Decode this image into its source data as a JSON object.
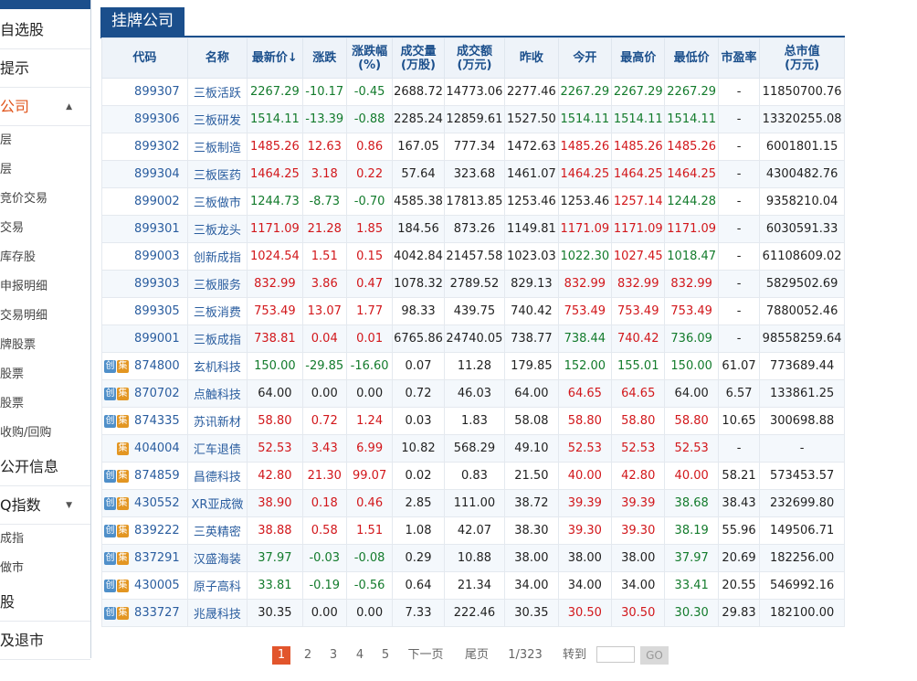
{
  "sidebar": {
    "items": [
      {
        "label": "自选股",
        "type": "main"
      },
      {
        "label": "提示",
        "type": "main"
      },
      {
        "label": "公司",
        "type": "main",
        "active": true,
        "expanded": true
      },
      {
        "label": "层",
        "type": "sub"
      },
      {
        "label": "层",
        "type": "sub"
      },
      {
        "label": "竞价交易",
        "type": "sub"
      },
      {
        "label": "交易",
        "type": "sub"
      },
      {
        "label": "库存股",
        "type": "sub"
      },
      {
        "label": "申报明细",
        "type": "sub"
      },
      {
        "label": "交易明细",
        "type": "sub"
      },
      {
        "label": "牌股票",
        "type": "sub"
      },
      {
        "label": "股票",
        "type": "sub"
      },
      {
        "label": "股票",
        "type": "sub"
      },
      {
        "label": "收购/回购",
        "type": "sub"
      },
      {
        "label": "公开信息",
        "type": "main"
      },
      {
        "label": "Q指数",
        "type": "main",
        "expanded": false
      },
      {
        "label": "成指",
        "type": "sub"
      },
      {
        "label": "做市",
        "type": "sub"
      },
      {
        "label": "股",
        "type": "main"
      },
      {
        "label": "及退市",
        "type": "main"
      }
    ]
  },
  "header": {
    "title": "挂牌公司"
  },
  "table": {
    "columns": [
      "代码",
      "名称",
      "最新价↓",
      "涨跌",
      "涨跌幅\n(%)",
      "成交量\n(万股)",
      "成交额\n(万元)",
      "昨收",
      "今开",
      "最高价",
      "最低价",
      "市盈率",
      "总市值\n(万元)"
    ],
    "rows": [
      {
        "badges": [],
        "code": "899307",
        "name": "三板活跃",
        "price": "2267.29",
        "change": "-10.17",
        "pct": "-0.45",
        "vol": "2688.72",
        "amt": "14773.06",
        "prev": "2277.46",
        "open": "2267.29",
        "high": "2267.29",
        "low": "2267.29",
        "pe": "-",
        "mcap": "11850700.76",
        "colors": {
          "price": "down",
          "change": "down",
          "pct": "down",
          "open": "down",
          "high": "down",
          "low": "down"
        }
      },
      {
        "badges": [],
        "code": "899306",
        "name": "三板研发",
        "price": "1514.11",
        "change": "-13.39",
        "pct": "-0.88",
        "vol": "2285.24",
        "amt": "12859.61",
        "prev": "1527.50",
        "open": "1514.11",
        "high": "1514.11",
        "low": "1514.11",
        "pe": "-",
        "mcap": "13320255.08",
        "colors": {
          "price": "down",
          "change": "down",
          "pct": "down",
          "open": "down",
          "high": "down",
          "low": "down"
        }
      },
      {
        "badges": [],
        "code": "899302",
        "name": "三板制造",
        "price": "1485.26",
        "change": "12.63",
        "pct": "0.86",
        "vol": "167.05",
        "amt": "777.34",
        "prev": "1472.63",
        "open": "1485.26",
        "high": "1485.26",
        "low": "1485.26",
        "pe": "-",
        "mcap": "6001801.15",
        "colors": {
          "price": "up",
          "change": "up",
          "pct": "up",
          "open": "up",
          "high": "up",
          "low": "up"
        }
      },
      {
        "badges": [],
        "code": "899304",
        "name": "三板医药",
        "price": "1464.25",
        "change": "3.18",
        "pct": "0.22",
        "vol": "57.64",
        "amt": "323.68",
        "prev": "1461.07",
        "open": "1464.25",
        "high": "1464.25",
        "low": "1464.25",
        "pe": "-",
        "mcap": "4300482.76",
        "colors": {
          "price": "up",
          "change": "up",
          "pct": "up",
          "open": "up",
          "high": "up",
          "low": "up"
        }
      },
      {
        "badges": [],
        "code": "899002",
        "name": "三板做市",
        "price": "1244.73",
        "change": "-8.73",
        "pct": "-0.70",
        "vol": "4585.38",
        "amt": "17813.85",
        "prev": "1253.46",
        "open": "1253.46",
        "high": "1257.14",
        "low": "1244.28",
        "pe": "-",
        "mcap": "9358210.04",
        "colors": {
          "price": "down",
          "change": "down",
          "pct": "down",
          "open": "flat",
          "high": "up",
          "low": "down"
        }
      },
      {
        "badges": [],
        "code": "899301",
        "name": "三板龙头",
        "price": "1171.09",
        "change": "21.28",
        "pct": "1.85",
        "vol": "184.56",
        "amt": "873.26",
        "prev": "1149.81",
        "open": "1171.09",
        "high": "1171.09",
        "low": "1171.09",
        "pe": "-",
        "mcap": "6030591.33",
        "colors": {
          "price": "up",
          "change": "up",
          "pct": "up",
          "open": "up",
          "high": "up",
          "low": "up"
        }
      },
      {
        "badges": [],
        "code": "899003",
        "name": "创新成指",
        "price": "1024.54",
        "change": "1.51",
        "pct": "0.15",
        "vol": "4042.84",
        "amt": "21457.58",
        "prev": "1023.03",
        "open": "1022.30",
        "high": "1027.45",
        "low": "1018.47",
        "pe": "-",
        "mcap": "61108609.02",
        "colors": {
          "price": "up",
          "change": "up",
          "pct": "up",
          "open": "down",
          "high": "up",
          "low": "down"
        }
      },
      {
        "badges": [],
        "code": "899303",
        "name": "三板服务",
        "price": "832.99",
        "change": "3.86",
        "pct": "0.47",
        "vol": "1078.32",
        "amt": "2789.52",
        "prev": "829.13",
        "open": "832.99",
        "high": "832.99",
        "low": "832.99",
        "pe": "-",
        "mcap": "5829502.69",
        "colors": {
          "price": "up",
          "change": "up",
          "pct": "up",
          "open": "up",
          "high": "up",
          "low": "up"
        }
      },
      {
        "badges": [],
        "code": "899305",
        "name": "三板消费",
        "price": "753.49",
        "change": "13.07",
        "pct": "1.77",
        "vol": "98.33",
        "amt": "439.75",
        "prev": "740.42",
        "open": "753.49",
        "high": "753.49",
        "low": "753.49",
        "pe": "-",
        "mcap": "7880052.46",
        "colors": {
          "price": "up",
          "change": "up",
          "pct": "up",
          "open": "up",
          "high": "up",
          "low": "up"
        }
      },
      {
        "badges": [],
        "code": "899001",
        "name": "三板成指",
        "price": "738.81",
        "change": "0.04",
        "pct": "0.01",
        "vol": "6765.86",
        "amt": "24740.05",
        "prev": "738.77",
        "open": "738.44",
        "high": "740.42",
        "low": "736.09",
        "pe": "-",
        "mcap": "98558259.64",
        "colors": {
          "price": "up",
          "change": "up",
          "pct": "up",
          "open": "down",
          "high": "up",
          "low": "down"
        }
      },
      {
        "badges": [
          "创",
          "集"
        ],
        "code": "874800",
        "name": "玄机科技",
        "price": "150.00",
        "change": "-29.85",
        "pct": "-16.60",
        "vol": "0.07",
        "amt": "11.28",
        "prev": "179.85",
        "open": "152.00",
        "high": "155.01",
        "low": "150.00",
        "pe": "61.07",
        "mcap": "773689.44",
        "colors": {
          "price": "down",
          "change": "down",
          "pct": "down",
          "open": "down",
          "high": "down",
          "low": "down"
        }
      },
      {
        "badges": [
          "创",
          "集"
        ],
        "code": "870702",
        "name": "点触科技",
        "price": "64.00",
        "change": "0.00",
        "pct": "0.00",
        "vol": "0.72",
        "amt": "46.03",
        "prev": "64.00",
        "open": "64.65",
        "high": "64.65",
        "low": "64.00",
        "pe": "6.57",
        "mcap": "133861.25",
        "colors": {
          "price": "flat",
          "change": "flat",
          "pct": "flat",
          "open": "up",
          "high": "up",
          "low": "flat"
        }
      },
      {
        "badges": [
          "创",
          "集"
        ],
        "code": "874335",
        "name": "苏讯新材",
        "price": "58.80",
        "change": "0.72",
        "pct": "1.24",
        "vol": "0.03",
        "amt": "1.83",
        "prev": "58.08",
        "open": "58.80",
        "high": "58.80",
        "low": "58.80",
        "pe": "10.65",
        "mcap": "300698.88",
        "colors": {
          "price": "up",
          "change": "up",
          "pct": "up",
          "open": "up",
          "high": "up",
          "low": "up"
        }
      },
      {
        "badges": [
          "集"
        ],
        "code": "404004",
        "name": "汇车退债",
        "price": "52.53",
        "change": "3.43",
        "pct": "6.99",
        "vol": "10.82",
        "amt": "568.29",
        "prev": "49.10",
        "open": "52.53",
        "high": "52.53",
        "low": "52.53",
        "pe": "-",
        "mcap": "-",
        "colors": {
          "price": "up",
          "change": "up",
          "pct": "up",
          "open": "up",
          "high": "up",
          "low": "up"
        }
      },
      {
        "badges": [
          "创",
          "集"
        ],
        "code": "874859",
        "name": "昌德科技",
        "price": "42.80",
        "change": "21.30",
        "pct": "99.07",
        "vol": "0.02",
        "amt": "0.83",
        "prev": "21.50",
        "open": "40.00",
        "high": "42.80",
        "low": "40.00",
        "pe": "58.21",
        "mcap": "573453.57",
        "colors": {
          "price": "up",
          "change": "up",
          "pct": "up",
          "open": "up",
          "high": "up",
          "low": "up"
        }
      },
      {
        "badges": [
          "创",
          "集"
        ],
        "code": "430552",
        "name": "XR亚成微",
        "price": "38.90",
        "change": "0.18",
        "pct": "0.46",
        "vol": "2.85",
        "amt": "111.00",
        "prev": "38.72",
        "open": "39.39",
        "high": "39.39",
        "low": "38.68",
        "pe": "38.43",
        "mcap": "232699.80",
        "colors": {
          "price": "up",
          "change": "up",
          "pct": "up",
          "open": "up",
          "high": "up",
          "low": "down"
        }
      },
      {
        "badges": [
          "创",
          "集"
        ],
        "code": "839222",
        "name": "三英精密",
        "price": "38.88",
        "change": "0.58",
        "pct": "1.51",
        "vol": "1.08",
        "amt": "42.07",
        "prev": "38.30",
        "open": "39.30",
        "high": "39.30",
        "low": "38.19",
        "pe": "55.96",
        "mcap": "149506.71",
        "colors": {
          "price": "up",
          "change": "up",
          "pct": "up",
          "open": "up",
          "high": "up",
          "low": "down"
        }
      },
      {
        "badges": [
          "创",
          "集"
        ],
        "code": "837291",
        "name": "汉盛海装",
        "price": "37.97",
        "change": "-0.03",
        "pct": "-0.08",
        "vol": "0.29",
        "amt": "10.88",
        "prev": "38.00",
        "open": "38.00",
        "high": "38.00",
        "low": "37.97",
        "pe": "20.69",
        "mcap": "182256.00",
        "colors": {
          "price": "down",
          "change": "down",
          "pct": "down",
          "open": "flat",
          "high": "flat",
          "low": "down"
        }
      },
      {
        "badges": [
          "创",
          "集"
        ],
        "code": "430005",
        "name": "原子高科",
        "price": "33.81",
        "change": "-0.19",
        "pct": "-0.56",
        "vol": "0.64",
        "amt": "21.34",
        "prev": "34.00",
        "open": "34.00",
        "high": "34.00",
        "low": "33.41",
        "pe": "20.55",
        "mcap": "546992.16",
        "colors": {
          "price": "down",
          "change": "down",
          "pct": "down",
          "open": "flat",
          "high": "flat",
          "low": "down"
        }
      },
      {
        "badges": [
          "创",
          "集"
        ],
        "code": "833727",
        "name": "兆晟科技",
        "price": "30.35",
        "change": "0.00",
        "pct": "0.00",
        "vol": "7.33",
        "amt": "222.46",
        "prev": "30.35",
        "open": "30.50",
        "high": "30.50",
        "low": "30.30",
        "pe": "29.83",
        "mcap": "182100.00",
        "colors": {
          "price": "flat",
          "change": "flat",
          "pct": "flat",
          "open": "up",
          "high": "up",
          "low": "down"
        }
      }
    ]
  },
  "pager": {
    "pages": [
      "1",
      "2",
      "3",
      "4",
      "5"
    ],
    "current": "1",
    "next": "下一页",
    "last": "尾页",
    "page_info": "1/323",
    "goto_label": "转到",
    "go": "GO"
  },
  "colors": {
    "up": "#d2171b",
    "down": "#137b2c",
    "accent": "#1b4f8c",
    "active_page": "#e2552c"
  }
}
